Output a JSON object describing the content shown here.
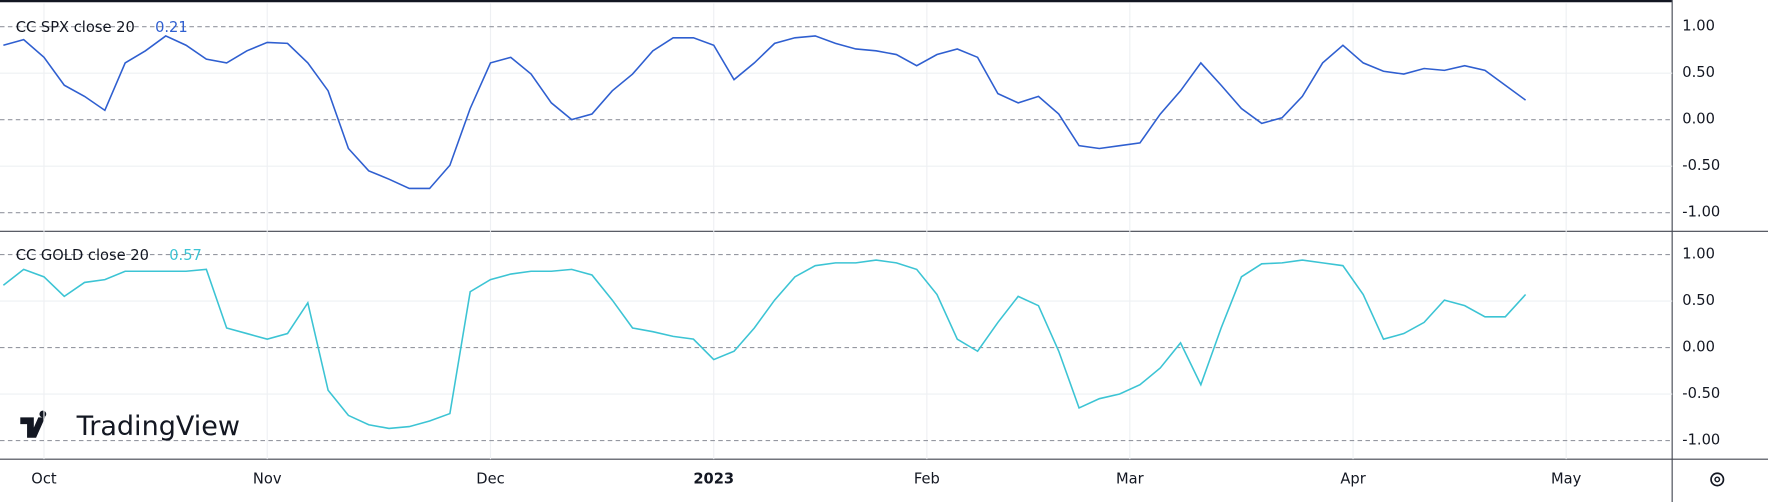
{
  "chart_data": [
    {
      "type": "line",
      "series": [
        {
          "name": "CC SPX close 20",
          "color": "#2f5fd0",
          "values": [
            0.8,
            0.86,
            0.67,
            0.37,
            0.25,
            0.1,
            0.61,
            0.74,
            0.9,
            0.8,
            0.65,
            0.61,
            0.74,
            0.83,
            0.82,
            0.61,
            0.31,
            -0.31,
            -0.55,
            -0.64,
            -0.74,
            -0.74,
            -0.49,
            0.12,
            0.61,
            0.67,
            0.49,
            0.18,
            0.0,
            0.06,
            0.31,
            0.49,
            0.74,
            0.88,
            0.88,
            0.8,
            0.43,
            0.61,
            0.82,
            0.88,
            0.9,
            0.82,
            0.76,
            0.74,
            0.7,
            0.58,
            0.7,
            0.76,
            0.67,
            0.28,
            0.18,
            0.25,
            0.06,
            -0.28,
            -0.31,
            -0.28,
            -0.25,
            0.06,
            0.31,
            0.61,
            0.37,
            0.12,
            -0.04,
            0.02,
            0.25,
            0.61,
            0.8,
            0.61,
            0.52,
            0.49,
            0.55,
            0.53,
            0.58,
            0.53,
            0.37,
            0.21
          ]
        }
      ],
      "x": [
        0,
        2,
        4,
        6,
        8,
        10,
        12,
        14,
        16,
        18,
        20,
        22,
        24,
        26,
        28,
        30,
        32,
        34,
        36,
        38,
        40,
        42,
        44,
        46,
        48,
        50,
        52,
        54,
        56,
        58,
        60,
        62,
        64,
        66,
        68,
        70,
        72,
        74,
        76,
        78,
        80,
        82,
        84,
        86,
        88,
        90,
        92,
        94,
        96,
        98,
        100,
        102,
        104,
        106,
        108,
        110,
        112,
        114,
        116,
        118,
        120,
        122,
        124,
        126,
        128,
        130,
        132,
        134,
        136,
        138,
        140,
        142,
        144,
        146,
        148,
        150
      ],
      "xlim": [
        0,
        164
      ],
      "ylim": [
        -1.2,
        1.25
      ],
      "yticks": [
        {
          "value": 1,
          "label": "1.00"
        },
        {
          "value": 0.5,
          "label": "0.50"
        },
        {
          "value": 0,
          "label": "0.00"
        },
        {
          "value": -0.5,
          "label": "-0.50"
        },
        {
          "value": -1,
          "label": "-1.00"
        }
      ],
      "grid": true
    },
    {
      "type": "line",
      "series": [
        {
          "name": "CC GOLD close 20",
          "color": "#3cc4d4",
          "values": [
            0.67,
            0.84,
            0.76,
            0.55,
            0.7,
            0.73,
            0.82,
            0.82,
            0.82,
            0.82,
            0.84,
            0.21,
            0.15,
            0.09,
            0.15,
            0.48,
            -0.46,
            -0.73,
            -0.83,
            -0.87,
            -0.85,
            -0.79,
            -0.71,
            0.6,
            0.73,
            0.79,
            0.82,
            0.82,
            0.84,
            0.78,
            0.51,
            0.21,
            0.17,
            0.12,
            0.09,
            -0.13,
            -0.04,
            0.21,
            0.51,
            0.76,
            0.88,
            0.91,
            0.91,
            0.94,
            0.91,
            0.84,
            0.57,
            0.09,
            -0.04,
            0.27,
            0.55,
            0.45,
            -0.04,
            -0.65,
            -0.55,
            -0.5,
            -0.4,
            -0.22,
            0.05,
            -0.4,
            0.21,
            0.76,
            0.9,
            0.91,
            0.94,
            0.91,
            0.88,
            0.57,
            0.09,
            0.15,
            0.27,
            0.51,
            0.45,
            0.33,
            0.33,
            0.57
          ]
        }
      ],
      "x": [
        0,
        2,
        4,
        6,
        8,
        10,
        12,
        14,
        16,
        18,
        20,
        22,
        24,
        26,
        28,
        30,
        32,
        34,
        36,
        38,
        40,
        42,
        44,
        46,
        48,
        50,
        52,
        54,
        56,
        58,
        60,
        62,
        64,
        66,
        68,
        70,
        72,
        74,
        76,
        78,
        80,
        82,
        84,
        86,
        88,
        90,
        92,
        94,
        96,
        98,
        100,
        102,
        104,
        106,
        108,
        110,
        112,
        114,
        116,
        118,
        120,
        122,
        124,
        126,
        128,
        130,
        132,
        134,
        136,
        138,
        140,
        142,
        144,
        146,
        148,
        150
      ],
      "xlim": [
        0,
        164
      ],
      "ylim": [
        -1.2,
        1.25
      ],
      "yticks": [
        {
          "value": 1,
          "label": "1.00"
        },
        {
          "value": 0.5,
          "label": "0.50"
        },
        {
          "value": 0,
          "label": "0.00"
        },
        {
          "value": -0.5,
          "label": "-0.50"
        },
        {
          "value": -1,
          "label": "-1.00"
        }
      ],
      "xticks": [
        {
          "value": 4,
          "label": "Oct"
        },
        {
          "value": 26,
          "label": "Nov"
        },
        {
          "value": 48,
          "label": "Dec"
        },
        {
          "value": 70,
          "label": "2023"
        },
        {
          "value": 91,
          "label": "Feb"
        },
        {
          "value": 111,
          "label": "Mar"
        },
        {
          "value": 133,
          "label": "Apr"
        },
        {
          "value": 154,
          "label": "May"
        }
      ],
      "grid": true,
      "watermark": "TradingView"
    }
  ]
}
